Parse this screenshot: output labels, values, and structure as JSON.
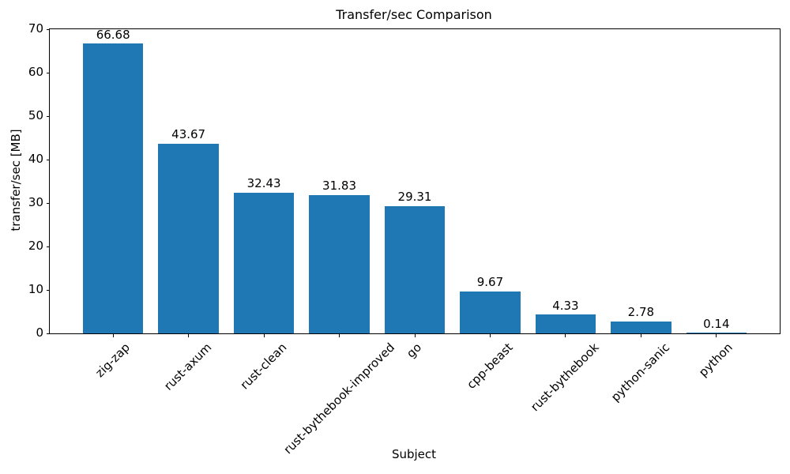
{
  "chart_data": {
    "type": "bar",
    "title": "Transfer/sec Comparison",
    "xlabel": "Subject",
    "ylabel": "transfer/sec [MB]",
    "categories": [
      "zig-zap",
      "rust-axum",
      "rust-clean",
      "rust-bythebook-improved",
      "go",
      "cpp-beast",
      "rust-bythebook",
      "python-sanic",
      "python"
    ],
    "values": [
      66.68,
      43.67,
      32.43,
      31.83,
      29.31,
      9.67,
      4.33,
      2.78,
      0.14
    ],
    "value_labels": [
      "66.68",
      "43.67",
      "32.43",
      "31.83",
      "29.31",
      "9.67",
      "4.33",
      "2.78",
      "0.14"
    ],
    "ylim": [
      0,
      70
    ],
    "yticks": [
      0,
      10,
      20,
      30,
      40,
      50,
      60,
      70
    ],
    "bar_color": "#1f77b4",
    "axis_color": "#000000",
    "text_color": "#000000",
    "background": "#ffffff",
    "grid": false,
    "x_tick_rotation_deg": 45
  }
}
